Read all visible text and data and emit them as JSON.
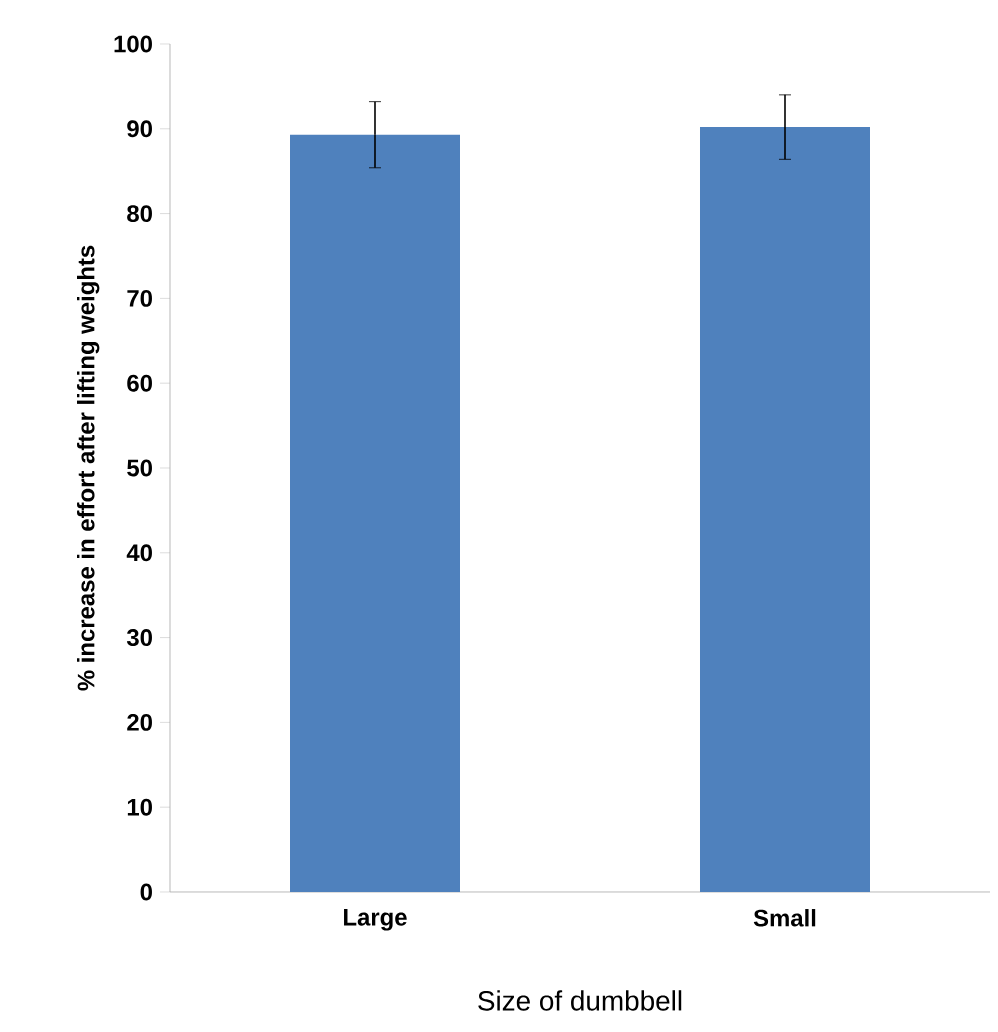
{
  "chart_data": {
    "type": "bar",
    "xlabel": "Size of dumbbell",
    "ylabel": "% increase in effort after lifting weights",
    "categories": [
      "Large",
      "Small"
    ],
    "values": [
      89.3,
      90.2
    ],
    "errors": [
      3.9,
      3.8
    ],
    "color": "#4f81bd",
    "ylim": [
      0,
      100
    ],
    "yticks": [
      0,
      10,
      20,
      30,
      40,
      50,
      60,
      70,
      80,
      90,
      100
    ]
  }
}
